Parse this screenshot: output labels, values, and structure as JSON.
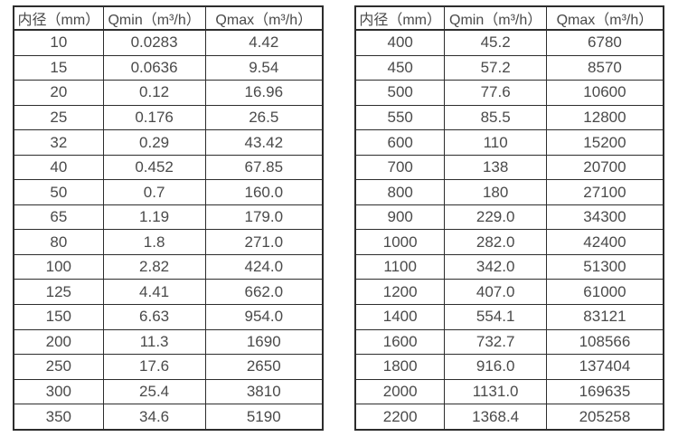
{
  "page": {
    "background": "#ffffff"
  },
  "colors": {
    "text": "#4a4a4a",
    "border": "#2d2d2d"
  },
  "tables": [
    {
      "name": "flow-table-small-diameters",
      "headers": [
        "内径（mm）",
        "Qmin（m³/h）",
        "Qmax（m³/h）"
      ],
      "rows": [
        [
          "10",
          "0.0283",
          "4.42"
        ],
        [
          "15",
          "0.0636",
          "9.54"
        ],
        [
          "20",
          "0.12",
          "16.96"
        ],
        [
          "25",
          "0.176",
          "26.5"
        ],
        [
          "32",
          "0.29",
          "43.42"
        ],
        [
          "40",
          "0.452",
          "67.85"
        ],
        [
          "50",
          "0.7",
          "160.0"
        ],
        [
          "65",
          "1.19",
          "179.0"
        ],
        [
          "80",
          "1.8",
          "271.0"
        ],
        [
          "100",
          "2.82",
          "424.0"
        ],
        [
          "125",
          "4.41",
          "662.0"
        ],
        [
          "150",
          "6.63",
          "954.0"
        ],
        [
          "200",
          "11.3",
          "1690"
        ],
        [
          "250",
          "17.6",
          "2650"
        ],
        [
          "300",
          "25.4",
          "3810"
        ],
        [
          "350",
          "34.6",
          "5190"
        ]
      ]
    },
    {
      "name": "flow-table-large-diameters",
      "headers": [
        "内径（mm）",
        "Qmin（m³/h）",
        "Qmax（m³/h）"
      ],
      "rows": [
        [
          "400",
          "45.2",
          "6780"
        ],
        [
          "450",
          "57.2",
          "8570"
        ],
        [
          "500",
          "77.6",
          "10600"
        ],
        [
          "550",
          "85.5",
          "12800"
        ],
        [
          "600",
          "110",
          "15200"
        ],
        [
          "700",
          "138",
          "20700"
        ],
        [
          "800",
          "180",
          "27100"
        ],
        [
          "900",
          "229.0",
          "34300"
        ],
        [
          "1000",
          "282.0",
          "42400"
        ],
        [
          "1100",
          "342.0",
          "51300"
        ],
        [
          "1200",
          "407.0",
          "61000"
        ],
        [
          "1400",
          "554.1",
          "83121"
        ],
        [
          "1600",
          "732.7",
          "108566"
        ],
        [
          "1800",
          "916.0",
          "137404"
        ],
        [
          "2000",
          "1131.0",
          "169635"
        ],
        [
          "2200",
          "1368.4",
          "205258"
        ]
      ]
    }
  ]
}
